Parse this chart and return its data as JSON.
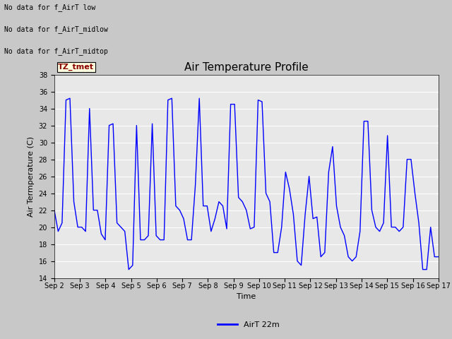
{
  "title": "Air Temperature Profile",
  "xlabel": "Time",
  "ylabel": "Air Termperature (C)",
  "ylim": [
    14,
    38
  ],
  "line_color": "blue",
  "line_width": 1.0,
  "legend_label": "AirT 22m",
  "annotations": [
    "No data for f_AirT low",
    "No data for f_AirT_midlow",
    "No data for f_AirT_midtop"
  ],
  "tz_label": "TZ_tmet",
  "fig_bg_color": "#c8c8c8",
  "plot_bg_color": "#e8e8e8",
  "start_day": 2,
  "end_day": 17,
  "temps": [
    22.0,
    19.5,
    20.5,
    35.0,
    35.2,
    23.0,
    20.0,
    20.0,
    19.5,
    34.0,
    22.0,
    22.0,
    19.2,
    18.5,
    32.0,
    32.2,
    20.5,
    20.0,
    19.5,
    15.0,
    15.5,
    32.0,
    18.5,
    18.5,
    19.0,
    32.2,
    19.0,
    18.5,
    18.5,
    35.0,
    35.2,
    22.5,
    22.0,
    21.0,
    18.5,
    18.5,
    25.0,
    35.2,
    22.5,
    22.5,
    19.5,
    21.0,
    23.0,
    22.5,
    19.8,
    34.5,
    34.5,
    23.5,
    23.0,
    22.0,
    19.8,
    20.0,
    35.0,
    34.8,
    24.0,
    23.0,
    17.0,
    17.0,
    20.0,
    26.5,
    24.5,
    21.5,
    16.0,
    15.5,
    21.5,
    26.0,
    21.0,
    21.2,
    16.5,
    17.0,
    26.5,
    29.5,
    22.5,
    20.0,
    19.0,
    16.5,
    16.0,
    16.5,
    19.5,
    32.5,
    32.5,
    22.0,
    20.0,
    19.5,
    20.5,
    30.8,
    20.0,
    20.0,
    19.5,
    20.0,
    28.0,
    28.0,
    24.0,
    20.5,
    15.0,
    15.0,
    20.0,
    16.5,
    16.5
  ]
}
